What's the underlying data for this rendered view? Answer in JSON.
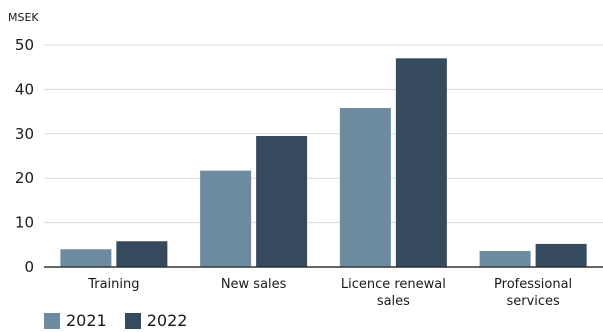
{
  "chart_data": {
    "type": "bar",
    "unit_label": "MSEK",
    "categories": [
      "Training",
      "New sales",
      "Licence renewal sales",
      "Professional services"
    ],
    "category_lines": [
      [
        "Training"
      ],
      [
        "New sales"
      ],
      [
        "Licence renewal",
        "sales"
      ],
      [
        "Professional",
        "services"
      ]
    ],
    "series": [
      {
        "name": "2021",
        "color": "#6c8aa0",
        "values": [
          4.0,
          21.7,
          35.8,
          3.6
        ]
      },
      {
        "name": "2022",
        "color": "#364a5e",
        "values": [
          5.8,
          29.5,
          47.0,
          5.2
        ]
      }
    ],
    "ylim": [
      0,
      50
    ],
    "yticks": [
      0,
      10,
      20,
      30,
      40,
      50
    ],
    "grid": true,
    "legend_position": "bottom-left"
  }
}
